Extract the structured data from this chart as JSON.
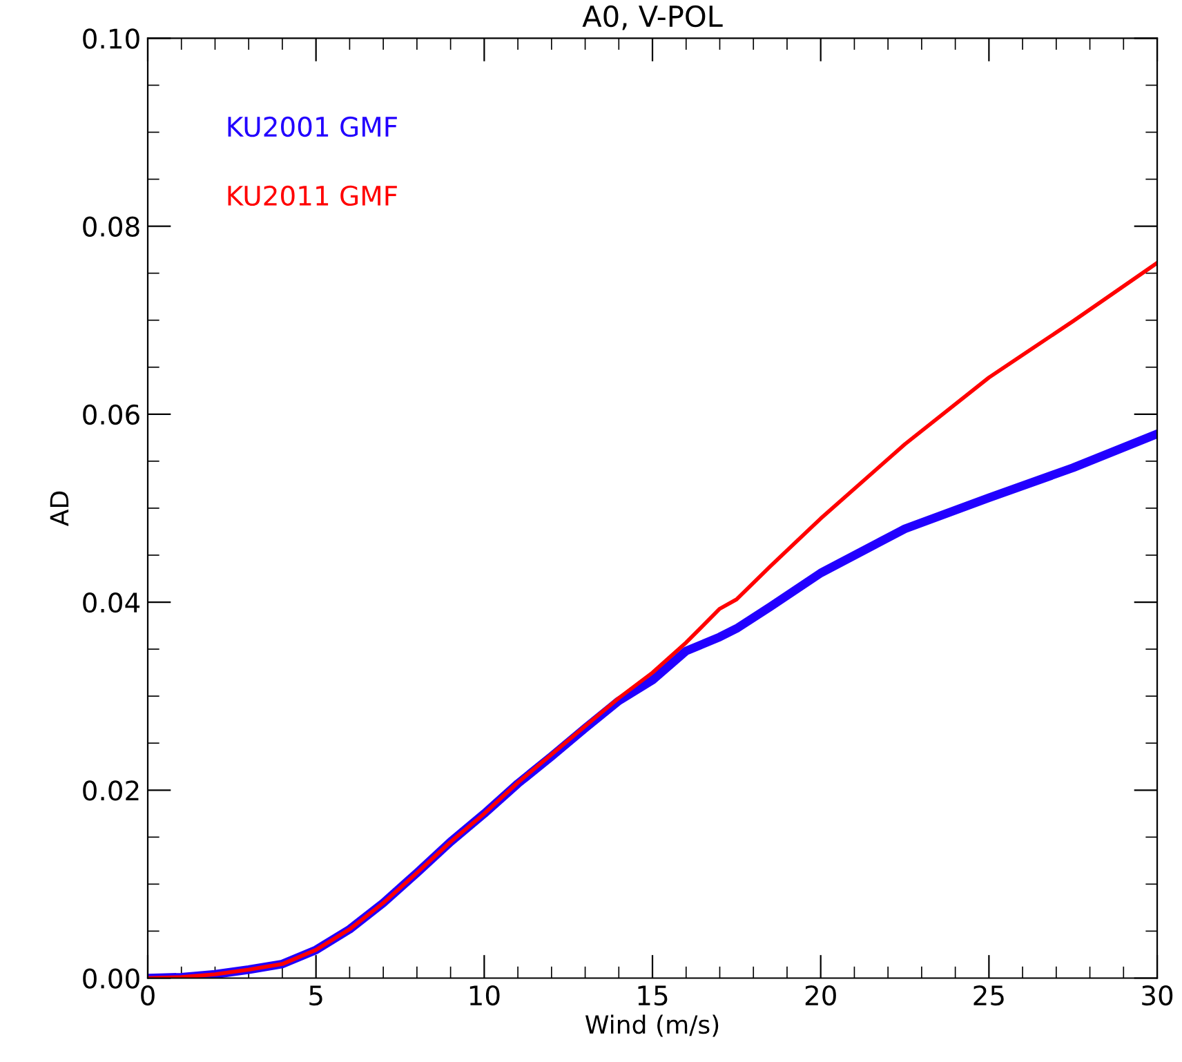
{
  "chart_data": {
    "type": "line",
    "title": "A0, V-POL",
    "xlabel": "Wind (m/s)",
    "ylabel": "AD",
    "xlim": [
      0,
      30
    ],
    "ylim": [
      0,
      0.1
    ],
    "xticks": [
      0,
      5,
      10,
      15,
      20,
      25,
      30
    ],
    "yticks": [
      {
        "value": 0,
        "label": "0.00"
      },
      {
        "value": 0.02,
        "label": "0.02"
      },
      {
        "value": 0.04,
        "label": "0.04"
      },
      {
        "value": 0.06,
        "label": "0.06"
      },
      {
        "value": 0.08,
        "label": "0.08"
      },
      {
        "value": 0.1,
        "label": "0.10"
      }
    ],
    "grid": false,
    "legend": "top left",
    "marker": "none",
    "line_style": "solid",
    "x": [
      0,
      1,
      2,
      3,
      4,
      5,
      6,
      7,
      8,
      9,
      10,
      11,
      12,
      13,
      14,
      15,
      16,
      17,
      17.5,
      18.5,
      20,
      22.5,
      25,
      27.5,
      30
    ],
    "series": [
      {
        "name": "KU2001 GMF",
        "color": "#2200ff",
        "values": [
          0,
          0.0001,
          0.0004,
          0.0009,
          0.0015,
          0.003,
          0.0052,
          0.008,
          0.0112,
          0.0145,
          0.0175,
          0.0207,
          0.0236,
          0.0266,
          0.0295,
          0.0317,
          0.0348,
          0.0363,
          0.0372,
          0.0395,
          0.0431,
          0.0478,
          0.0511,
          0.0543,
          0.0579
        ]
      },
      {
        "name": "KU2011 GMF",
        "color": "#ff0000",
        "values": [
          0,
          0.0001,
          0.0004,
          0.0009,
          0.0015,
          0.003,
          0.0052,
          0.008,
          0.0112,
          0.0145,
          0.0175,
          0.0208,
          0.0238,
          0.0268,
          0.0298,
          0.0325,
          0.0357,
          0.0393,
          0.0403,
          0.0438,
          0.0489,
          0.0568,
          0.0639,
          0.0699,
          0.0761
        ]
      }
    ]
  }
}
